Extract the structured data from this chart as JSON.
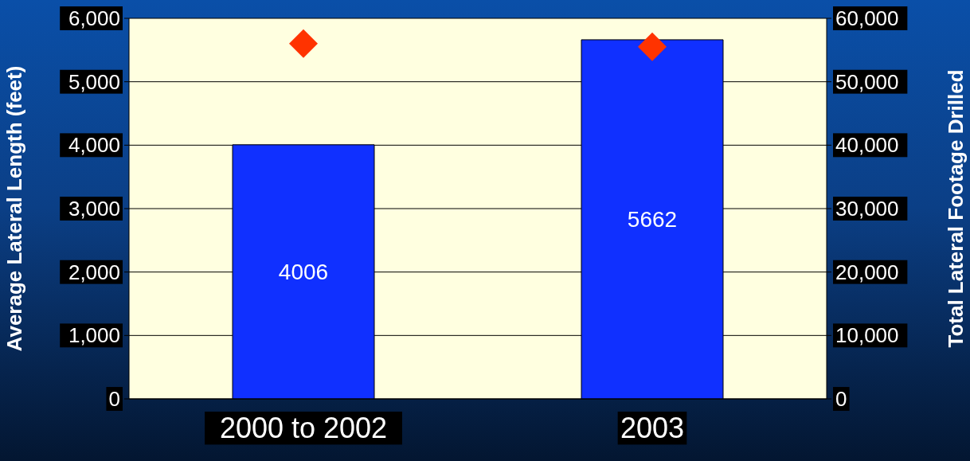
{
  "chart_data": {
    "type": "bar",
    "categories": [
      "2000 to 2002",
      "2003"
    ],
    "ylabel": "Average Lateral Length (feet)",
    "y2label": "Total Lateral Footage Drilled",
    "ylim": [
      0,
      6000
    ],
    "yticks": [
      0,
      {
        "value": 1000,
        "label": "1,000"
      },
      {
        "value": 2000,
        "label": "2,000"
      },
      {
        "value": 3000,
        "label": "3,000"
      },
      {
        "value": 4000,
        "label": "4,000"
      },
      {
        "value": 5000,
        "label": "5,000"
      },
      {
        "value": 6000,
        "label": "6,000"
      }
    ],
    "y2lim": [
      0,
      60000
    ],
    "y2ticks": [
      0,
      {
        "value": 10000,
        "label": "10,000"
      },
      {
        "value": 20000,
        "label": "20,000"
      },
      {
        "value": 30000,
        "label": "30,000"
      },
      {
        "value": 40000,
        "label": "40,000"
      },
      {
        "value": 50000,
        "label": "50,000"
      },
      {
        "value": 60000,
        "label": "60,000"
      }
    ],
    "grid": "y",
    "marker": "diamond",
    "series": [
      {
        "color": "#1030ff",
        "values": [
          4006,
          5662
        ],
        "value_labels": [
          "4006",
          "5662"
        ]
      },
      {
        "type": "scatter",
        "axis": "y2",
        "color": "#ff3300",
        "values": [
          56000,
          55500
        ]
      }
    ]
  }
}
